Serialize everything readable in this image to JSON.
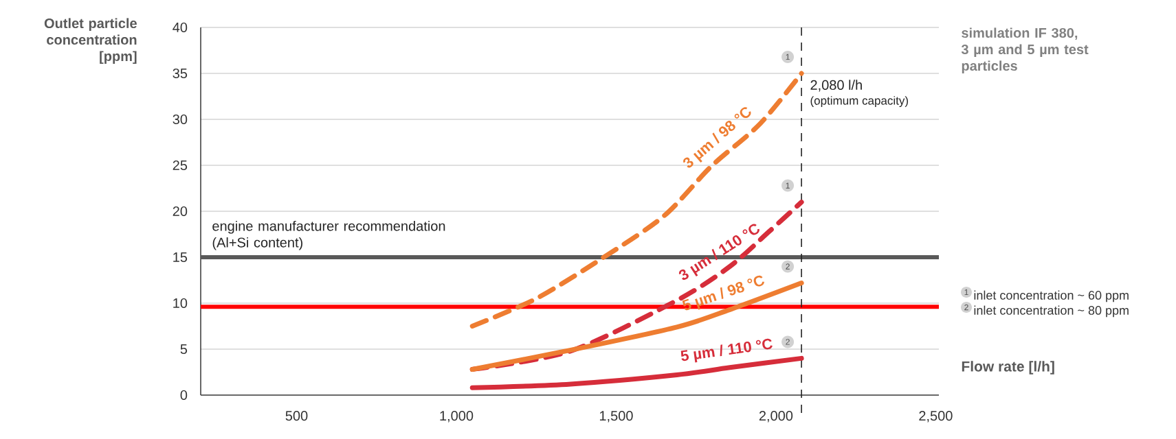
{
  "chart_data": {
    "type": "line",
    "title": "simulation IF 380, 3 µm and 5 µm test particles",
    "xlabel": "Flow rate [l/h]",
    "ylabel": "Outlet particle concentration [ppm]",
    "xlim": [
      200,
      2510
    ],
    "ylim": [
      0,
      40
    ],
    "xticks": [
      500,
      {
        "value": 1000,
        "label": "1,000"
      },
      {
        "value": 1500,
        "label": "1,500"
      },
      {
        "value": 2000,
        "label": "2,000"
      },
      {
        "value": 2500,
        "label": "2,500"
      }
    ],
    "yticks": [
      0,
      5,
      10,
      15,
      20,
      25,
      30,
      35,
      40
    ],
    "grid": "y",
    "series": [
      {
        "name": "3 µm / 98 °C",
        "color": "#ee7d31",
        "line_style": "dashed",
        "x": [
          1050,
          1250,
          1457,
          1650,
          1798,
          1950,
          2080
        ],
        "values": [
          7.5,
          10.5,
          14.9,
          19.5,
          24.9,
          29.5,
          35.0
        ]
      },
      {
        "name": "3 µm / 110 °C",
        "color": "#d62d3a",
        "line_style": "dashed",
        "x": [
          1050,
          1358,
          1690,
          1856,
          1979,
          2080
        ],
        "values": [
          2.8,
          4.8,
          10.3,
          14.0,
          17.8,
          21.0
        ]
      },
      {
        "name": "5 µm / 98 °C",
        "color": "#ee7d31",
        "line_style": "solid",
        "x": [
          1050,
          1358,
          1690,
          1856,
          2080
        ],
        "values": [
          2.8,
          4.9,
          7.4,
          9.3,
          12.2
        ]
      },
      {
        "name": "5 µm / 110 °C",
        "color": "#d62d3a",
        "line_style": "solid",
        "x": [
          1050,
          1358,
          1690,
          1856,
          2080
        ],
        "values": [
          0.8,
          1.2,
          2.2,
          3.0,
          4.0
        ]
      }
    ],
    "ref_lines": [
      {
        "axis": "y",
        "value": 15,
        "label": "engine manufacturer recommendation (Al+Si content)",
        "color": "#595959"
      },
      {
        "axis": "y",
        "value": 9.6,
        "color": "#ff0000"
      },
      {
        "axis": "x",
        "value": 2080,
        "label": "2,080 l/h",
        "color": "#222222",
        "line_style": "dashed"
      }
    ],
    "annotations": [
      "(optimum capacity)",
      "1",
      "1",
      "2",
      "2",
      "1",
      "inlet concentration ~ 60 ppm",
      "2",
      "inlet concentration ~ 80 ppm"
    ]
  }
}
